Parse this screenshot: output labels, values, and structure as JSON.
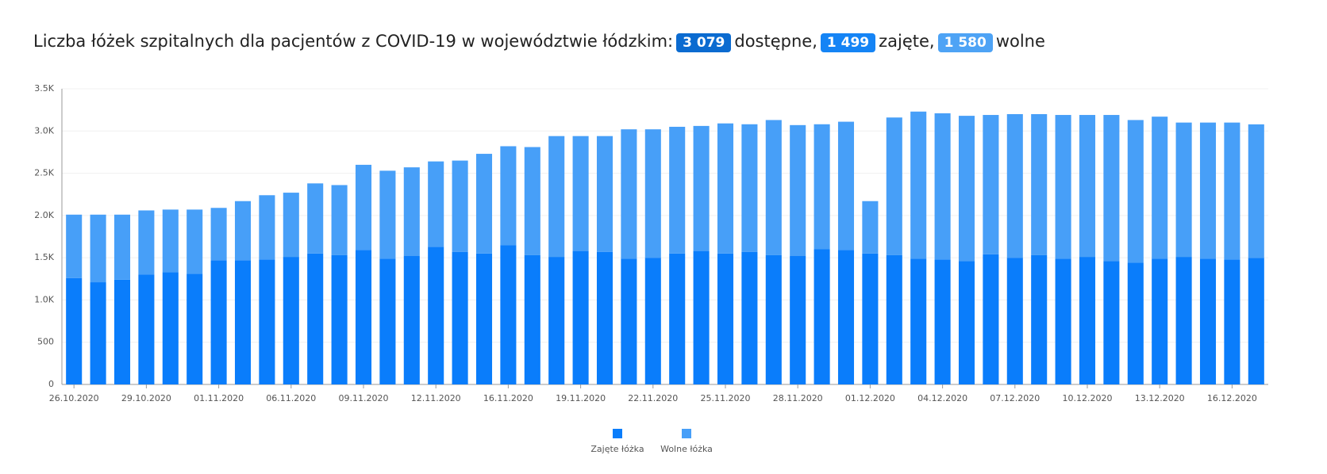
{
  "chart_data": {
    "type": "stacked-bar",
    "title": "Liczba łóżek szpitalnych dla pacjentów z COVID-19 w województwie łódzkim:",
    "headline": [
      {
        "badge": "3 079",
        "text": "dostępne,",
        "color": "#0b6bd0"
      },
      {
        "badge": "1 499",
        "text": "zajęte,",
        "color": "#1584f5"
      },
      {
        "badge": "1 580",
        "text": "wolne",
        "color": "#4ea3f5"
      }
    ],
    "categories": [
      "26.10.2020",
      null,
      null,
      "29.10.2020",
      null,
      null,
      "01.11.2020",
      null,
      null,
      "06.11.2020",
      null,
      null,
      "09.11.2020",
      null,
      null,
      "12.11.2020",
      null,
      null,
      "16.11.2020",
      null,
      null,
      "19.11.2020",
      null,
      null,
      "22.11.2020",
      null,
      null,
      "25.11.2020",
      null,
      null,
      "28.11.2020",
      null,
      null,
      "01.12.2020",
      null,
      null,
      "04.12.2020",
      null,
      null,
      "07.12.2020",
      null,
      null,
      "10.12.2020",
      null,
      null,
      "13.12.2020",
      null,
      null,
      "16.12.2020",
      null
    ],
    "series": [
      {
        "name": "Zajęte łóżka",
        "color": "#0a7dfb",
        "values": [
          1260,
          1210,
          1240,
          1300,
          1330,
          1310,
          1470,
          1470,
          1480,
          1510,
          1550,
          1530,
          1590,
          1490,
          1520,
          1630,
          1570,
          1550,
          1650,
          1530,
          1510,
          1580,
          1570,
          1490,
          1500,
          1550,
          1580,
          1550,
          1570,
          1530,
          1520,
          1600,
          1590,
          1550,
          1530,
          1490,
          1480,
          1460,
          1540,
          1500,
          1530,
          1490,
          1510,
          1460,
          1440,
          1490,
          1510,
          1490,
          1480,
          1499
        ]
      },
      {
        "name": "Wolne łóżka",
        "color": "#479ff8",
        "values": [
          750,
          800,
          770,
          760,
          740,
          760,
          620,
          700,
          760,
          760,
          830,
          830,
          1010,
          1040,
          1050,
          1010,
          1080,
          1180,
          1170,
          1280,
          1430,
          1360,
          1370,
          1530,
          1520,
          1500,
          1480,
          1540,
          1510,
          1600,
          1550,
          1480,
          1520,
          620,
          1630,
          1740,
          1730,
          1720,
          1650,
          1700,
          1670,
          1700,
          1680,
          1730,
          1690,
          1680,
          1590,
          1610,
          1620,
          1580
        ]
      }
    ],
    "ylim": [
      0,
      3500
    ],
    "yticks": [
      0,
      500,
      {
        "value": 1000,
        "label": "1.0K"
      },
      {
        "value": 1500,
        "label": "1.5K"
      },
      {
        "value": 2000,
        "label": "2.0K"
      },
      {
        "value": 2500,
        "label": "2.5K"
      },
      {
        "value": 3000,
        "label": "3.0K"
      },
      {
        "value": 3500,
        "label": "3.5K"
      }
    ],
    "grid": true
  }
}
